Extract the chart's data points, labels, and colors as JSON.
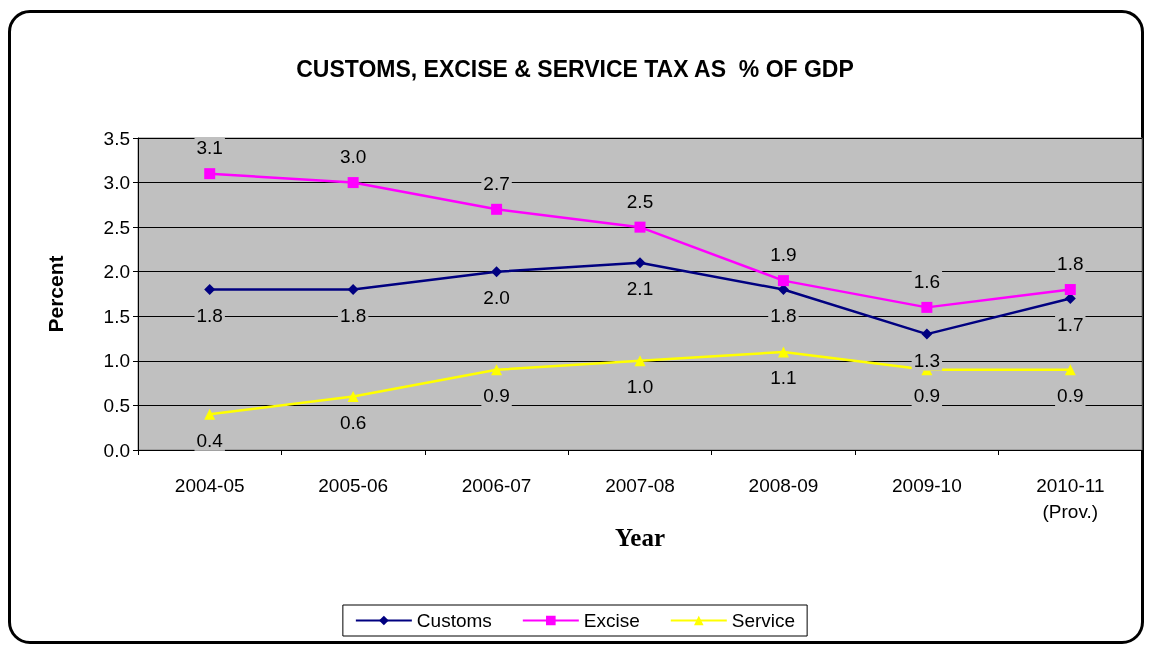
{
  "chart_data": {
    "type": "line",
    "title": "CUSTOMS, EXCISE & SERVICE TAX AS  % OF GDP",
    "xlabel": "Year",
    "ylabel": "Percent",
    "categories": [
      "2004-05",
      "2005-06",
      "2006-07",
      "2007-08",
      "2008-09",
      "2009-10",
      "2010-11\n(Prov.)"
    ],
    "series": [
      {
        "name": "Customs",
        "color": "#000080",
        "marker": "diamond",
        "values": [
          1.8,
          1.8,
          2.0,
          2.1,
          1.8,
          1.3,
          1.7
        ],
        "value_labels": [
          "1.8",
          "1.8",
          "2.0",
          "2.1",
          "1.8",
          "1.3",
          "1.7"
        ]
      },
      {
        "name": "Excise",
        "color": "#ff00ff",
        "marker": "square",
        "values": [
          3.1,
          3.0,
          2.7,
          2.5,
          1.9,
          1.6,
          1.8
        ],
        "value_labels": [
          "3.1",
          "3.0",
          "2.7",
          "2.5",
          "1.9",
          "1.6",
          "1.8"
        ]
      },
      {
        "name": "Service",
        "color": "#ffff00",
        "marker": "triangle",
        "values": [
          0.4,
          0.6,
          0.9,
          1.0,
          1.1,
          0.9,
          0.9
        ],
        "value_labels": [
          "0.4",
          "0.6",
          "0.9",
          "1.0",
          "1.1",
          "0.9",
          "0.9"
        ]
      }
    ],
    "ylim": [
      0,
      3.5
    ],
    "yticks": [
      {
        "value": 0,
        "label": "0.0"
      },
      {
        "value": 0.5,
        "label": "0.5"
      },
      {
        "value": 1,
        "label": "1.0"
      },
      {
        "value": 1.5,
        "label": "1.5"
      },
      {
        "value": 2,
        "label": "2.0"
      },
      {
        "value": 2.5,
        "label": "2.5"
      },
      {
        "value": 3,
        "label": "3.0"
      },
      {
        "value": 3.5,
        "label": "3.5"
      }
    ],
    "grid": "y",
    "legend": "bottom"
  }
}
